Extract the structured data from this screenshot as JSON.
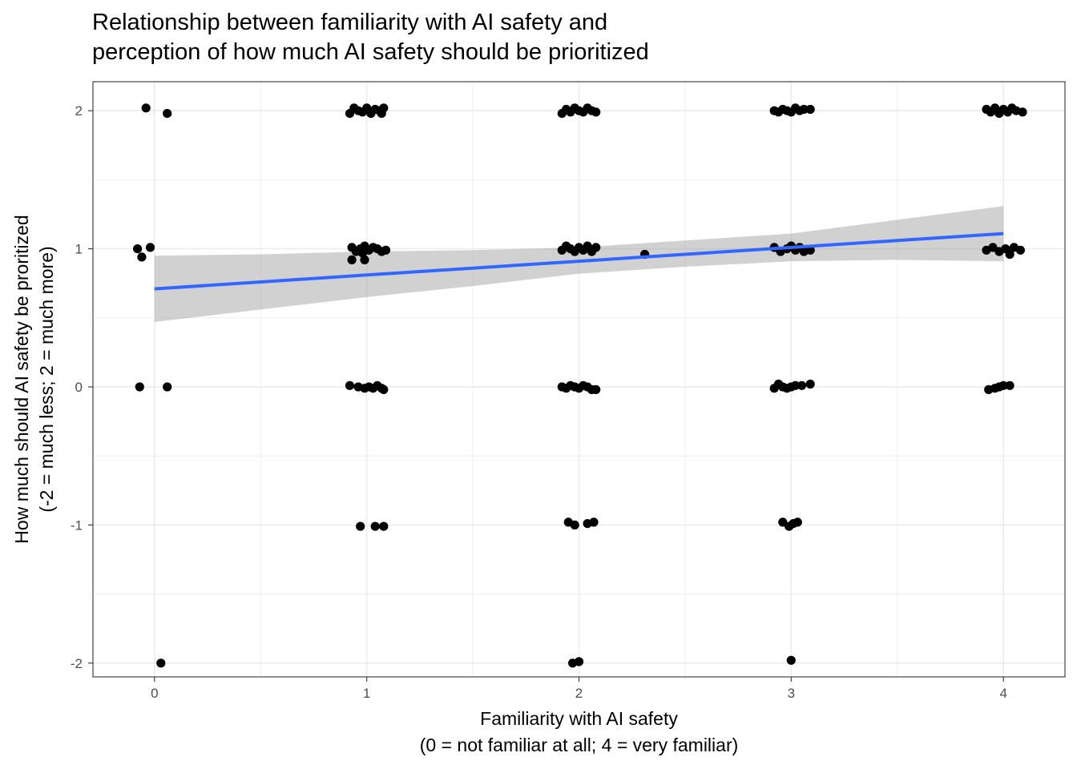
{
  "chart_data": {
    "type": "scatter",
    "title_lines": [
      "Relationship between familiarity with AI safety and",
      "perception of how much AI safety should be prioritized"
    ],
    "xlabel_lines": [
      "Familiarity with AI safety",
      "(0 = not familiar at all; 4 = very familiar)"
    ],
    "ylabel_lines": [
      "How much should AI safety be proritized",
      "(-2 = much less; 2 = much more)"
    ],
    "xlim": [
      -0.29,
      4.29
    ],
    "ylim": [
      -2.1,
      2.21
    ],
    "x_ticks": [
      0,
      1,
      2,
      3,
      4
    ],
    "x_tick_labels": [
      "0",
      "1",
      "2",
      "3",
      "4"
    ],
    "y_ticks": [
      -2,
      -1,
      0,
      1,
      2
    ],
    "y_tick_labels": [
      "-2",
      "-1",
      "0",
      "1",
      "2"
    ],
    "grid": true,
    "point_color": "#000000",
    "line_color": "#3366FF",
    "ribbon_color": "#999999",
    "regression": {
      "x": [
        0,
        0.5,
        1,
        1.5,
        2,
        2.5,
        3,
        3.5,
        4
      ],
      "fit": [
        0.71,
        0.76,
        0.81,
        0.86,
        0.91,
        0.96,
        1.01,
        1.06,
        1.11
      ],
      "lower": [
        0.47,
        0.56,
        0.65,
        0.73,
        0.82,
        0.87,
        0.91,
        0.92,
        0.91
      ],
      "upper": [
        0.95,
        0.96,
        0.98,
        0.99,
        1.01,
        1.06,
        1.11,
        1.21,
        1.31
      ]
    },
    "points": [
      {
        "x": -0.04,
        "y": 2.02
      },
      {
        "x": 0.06,
        "y": 1.98
      },
      {
        "x": -0.08,
        "y": 1.0
      },
      {
        "x": -0.06,
        "y": 0.94
      },
      {
        "x": -0.02,
        "y": 1.01
      },
      {
        "x": -0.07,
        "y": 0.0
      },
      {
        "x": 0.06,
        "y": 0.0
      },
      {
        "x": 0.03,
        "y": -2.0
      },
      {
        "x": 0.92,
        "y": 1.98
      },
      {
        "x": 0.94,
        "y": 2.02
      },
      {
        "x": 0.96,
        "y": 2.0
      },
      {
        "x": 0.98,
        "y": 1.99
      },
      {
        "x": 1.0,
        "y": 2.02
      },
      {
        "x": 1.02,
        "y": 1.98
      },
      {
        "x": 1.04,
        "y": 2.01
      },
      {
        "x": 1.06,
        "y": 2.0
      },
      {
        "x": 1.07,
        "y": 1.98
      },
      {
        "x": 1.08,
        "y": 2.02
      },
      {
        "x": 0.93,
        "y": 1.01
      },
      {
        "x": 0.95,
        "y": 0.98
      },
      {
        "x": 0.97,
        "y": 1.0
      },
      {
        "x": 0.99,
        "y": 1.02
      },
      {
        "x": 1.01,
        "y": 0.99
      },
      {
        "x": 1.03,
        "y": 1.01
      },
      {
        "x": 1.05,
        "y": 1.0
      },
      {
        "x": 1.07,
        "y": 0.98
      },
      {
        "x": 1.09,
        "y": 0.99
      },
      {
        "x": 0.93,
        "y": 0.92
      },
      {
        "x": 0.98,
        "y": 0.97
      },
      {
        "x": 0.99,
        "y": 0.92
      },
      {
        "x": 0.92,
        "y": 0.01
      },
      {
        "x": 0.96,
        "y": 0.0
      },
      {
        "x": 0.99,
        "y": -0.01
      },
      {
        "x": 1.01,
        "y": 0.0
      },
      {
        "x": 1.03,
        "y": -0.01
      },
      {
        "x": 1.05,
        "y": 0.01
      },
      {
        "x": 1.07,
        "y": -0.01
      },
      {
        "x": 1.08,
        "y": -0.02
      },
      {
        "x": 0.97,
        "y": -1.01
      },
      {
        "x": 1.04,
        "y": -1.01
      },
      {
        "x": 1.08,
        "y": -1.01
      },
      {
        "x": 1.92,
        "y": 1.98
      },
      {
        "x": 1.94,
        "y": 2.01
      },
      {
        "x": 1.96,
        "y": 1.99
      },
      {
        "x": 1.98,
        "y": 2.02
      },
      {
        "x": 2.0,
        "y": 2.0
      },
      {
        "x": 2.02,
        "y": 1.99
      },
      {
        "x": 2.04,
        "y": 2.02
      },
      {
        "x": 2.06,
        "y": 2.0
      },
      {
        "x": 2.08,
        "y": 1.99
      },
      {
        "x": 1.92,
        "y": 0.99
      },
      {
        "x": 1.94,
        "y": 1.02
      },
      {
        "x": 1.96,
        "y": 1.0
      },
      {
        "x": 1.98,
        "y": 0.98
      },
      {
        "x": 2.0,
        "y": 1.01
      },
      {
        "x": 2.02,
        "y": 0.99
      },
      {
        "x": 2.04,
        "y": 1.02
      },
      {
        "x": 2.06,
        "y": 0.98
      },
      {
        "x": 2.08,
        "y": 1.01
      },
      {
        "x": 2.31,
        "y": 0.96
      },
      {
        "x": 1.92,
        "y": 0.0
      },
      {
        "x": 1.94,
        "y": -0.01
      },
      {
        "x": 1.96,
        "y": 0.01
      },
      {
        "x": 1.98,
        "y": 0.0
      },
      {
        "x": 2.0,
        "y": -0.01
      },
      {
        "x": 2.02,
        "y": 0.01
      },
      {
        "x": 2.04,
        "y": 0.0
      },
      {
        "x": 2.06,
        "y": -0.02
      },
      {
        "x": 2.08,
        "y": -0.02
      },
      {
        "x": 1.95,
        "y": -0.98
      },
      {
        "x": 1.98,
        "y": -1.0
      },
      {
        "x": 2.04,
        "y": -0.99
      },
      {
        "x": 2.07,
        "y": -0.98
      },
      {
        "x": 1.97,
        "y": -2.0
      },
      {
        "x": 2.0,
        "y": -1.99
      },
      {
        "x": 2.92,
        "y": 2.0
      },
      {
        "x": 2.94,
        "y": 1.99
      },
      {
        "x": 2.96,
        "y": 2.01
      },
      {
        "x": 2.98,
        "y": 2.0
      },
      {
        "x": 3.0,
        "y": 1.99
      },
      {
        "x": 3.02,
        "y": 2.02
      },
      {
        "x": 3.04,
        "y": 2.0
      },
      {
        "x": 3.06,
        "y": 2.01
      },
      {
        "x": 3.09,
        "y": 2.01
      },
      {
        "x": 2.92,
        "y": 1.01
      },
      {
        "x": 2.95,
        "y": 0.98
      },
      {
        "x": 2.98,
        "y": 1.0
      },
      {
        "x": 3.0,
        "y": 1.02
      },
      {
        "x": 3.02,
        "y": 0.99
      },
      {
        "x": 3.04,
        "y": 1.01
      },
      {
        "x": 3.06,
        "y": 0.98
      },
      {
        "x": 3.09,
        "y": 0.99
      },
      {
        "x": 2.92,
        "y": -0.01
      },
      {
        "x": 2.94,
        "y": 0.02
      },
      {
        "x": 2.96,
        "y": 0.0
      },
      {
        "x": 2.98,
        "y": -0.01
      },
      {
        "x": 3.0,
        "y": 0.0
      },
      {
        "x": 3.02,
        "y": 0.01
      },
      {
        "x": 3.05,
        "y": 0.01
      },
      {
        "x": 3.09,
        "y": 0.02
      },
      {
        "x": 2.96,
        "y": -0.98
      },
      {
        "x": 2.99,
        "y": -1.01
      },
      {
        "x": 3.01,
        "y": -0.99
      },
      {
        "x": 3.03,
        "y": -0.98
      },
      {
        "x": 3.0,
        "y": -1.98
      },
      {
        "x": 3.92,
        "y": 2.01
      },
      {
        "x": 3.94,
        "y": 1.99
      },
      {
        "x": 3.96,
        "y": 2.02
      },
      {
        "x": 3.98,
        "y": 1.98
      },
      {
        "x": 4.0,
        "y": 2.01
      },
      {
        "x": 4.02,
        "y": 1.99
      },
      {
        "x": 4.04,
        "y": 2.02
      },
      {
        "x": 4.06,
        "y": 2.0
      },
      {
        "x": 4.09,
        "y": 1.99
      },
      {
        "x": 3.92,
        "y": 0.99
      },
      {
        "x": 3.95,
        "y": 1.01
      },
      {
        "x": 3.98,
        "y": 0.98
      },
      {
        "x": 4.01,
        "y": 1.0
      },
      {
        "x": 4.03,
        "y": 0.96
      },
      {
        "x": 4.05,
        "y": 1.01
      },
      {
        "x": 4.08,
        "y": 0.99
      },
      {
        "x": 3.93,
        "y": -0.02
      },
      {
        "x": 3.96,
        "y": -0.01
      },
      {
        "x": 3.98,
        "y": 0.0
      },
      {
        "x": 4.0,
        "y": 0.01
      },
      {
        "x": 4.03,
        "y": 0.01
      }
    ]
  }
}
